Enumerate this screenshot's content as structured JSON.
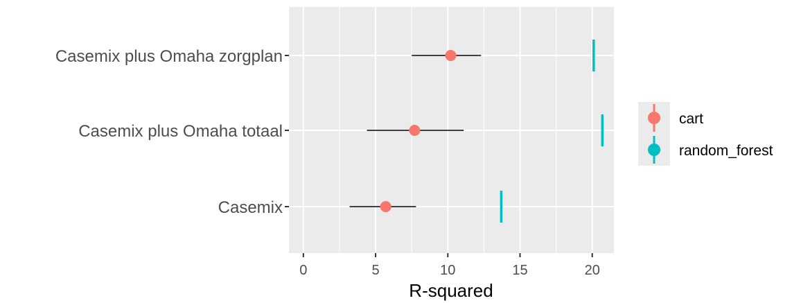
{
  "chart_data": {
    "type": "scatter",
    "xlabel": "R-squared",
    "ylabel": "",
    "xlim": [
      -1,
      21.5
    ],
    "x_ticks": [
      0,
      5,
      10,
      15,
      20
    ],
    "x_tick_labels": [
      "0",
      "5",
      "10",
      "15",
      "20"
    ],
    "grid": true,
    "legend_position": "right",
    "categories": [
      "Casemix plus Omaha zorgplan",
      "Casemix plus Omaha totaal",
      "Casemix"
    ],
    "series": [
      {
        "name": "cart",
        "color": "#F8766D",
        "marker": "point-with-interval",
        "values": [
          10.2,
          7.7,
          5.7
        ],
        "lower": [
          7.5,
          4.4,
          3.2
        ],
        "upper": [
          12.3,
          11.1,
          7.8
        ]
      },
      {
        "name": "random_forest",
        "color": "#00BFC4",
        "marker": "vertical-bar",
        "values": [
          20.1,
          20.7,
          13.7
        ]
      }
    ],
    "colors": {
      "panel_background": "#EBEBEB",
      "grid_line": "#FFFFFF",
      "interval_line": "#000000"
    }
  }
}
